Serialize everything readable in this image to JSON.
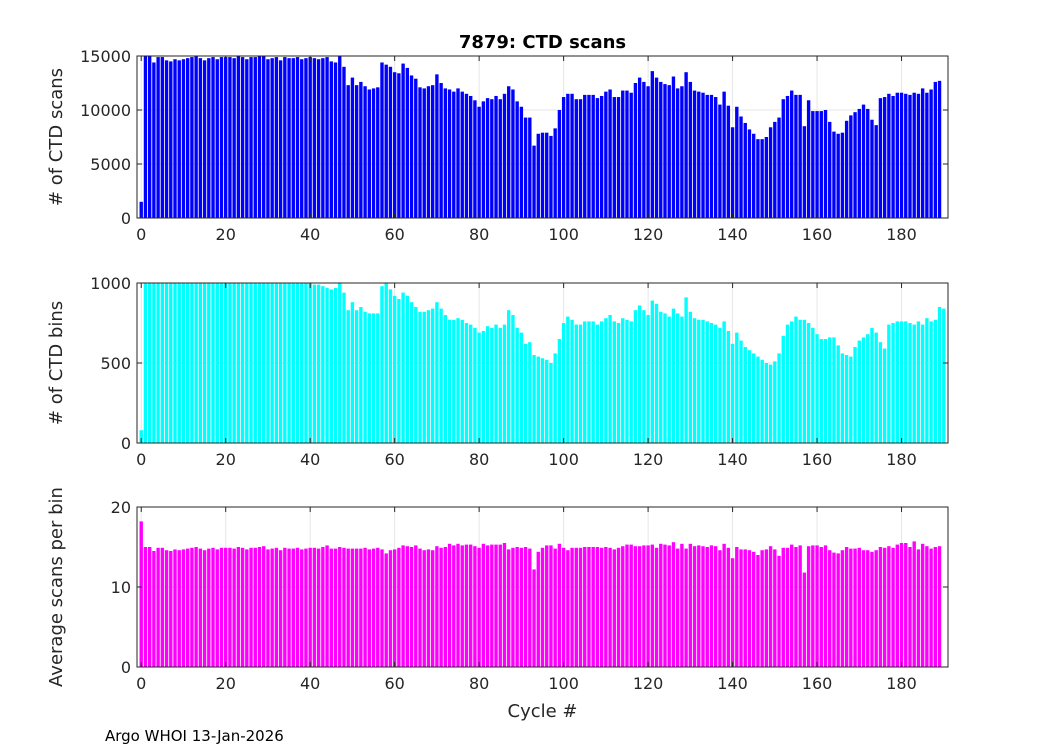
{
  "chart_data": [
    {
      "type": "bar",
      "title": "7879: CTD scans",
      "xlabel": "",
      "ylabel": "# of CTD scans",
      "xlim": [
        -1,
        191
      ],
      "ylim": [
        0,
        15000
      ],
      "xticks": [
        0,
        20,
        40,
        60,
        80,
        100,
        120,
        140,
        160,
        180
      ],
      "yticks": [
        0,
        5000,
        10000,
        15000
      ],
      "grid": true,
      "color": "#0000ff",
      "values": [
        1500,
        15000,
        15000,
        14400,
        14900,
        14900,
        14600,
        14500,
        14700,
        14600,
        14700,
        14800,
        14900,
        15000,
        14800,
        14600,
        14800,
        14900,
        14700,
        14900,
        14900,
        14900,
        14800,
        15000,
        14900,
        14700,
        14900,
        14900,
        15000,
        15100,
        14700,
        14800,
        14900,
        14600,
        14900,
        14800,
        14800,
        14900,
        14700,
        14800,
        14900,
        14800,
        14700,
        14800,
        14900,
        14500,
        14400,
        15000,
        14000,
        12300,
        13000,
        12300,
        12600,
        12200,
        11900,
        12000,
        12100,
        14400,
        14200,
        14000,
        13500,
        13400,
        14300,
        13900,
        13200,
        12900,
        12100,
        12000,
        12200,
        12300,
        13300,
        12500,
        12000,
        11900,
        11700,
        12000,
        11700,
        11500,
        11300,
        10900,
        10300,
        10800,
        11100,
        11000,
        11300,
        11000,
        11500,
        12200,
        11900,
        10800,
        10300,
        9300,
        9300,
        6700,
        7800,
        7900,
        7900,
        7600,
        8300,
        10000,
        11200,
        11500,
        11500,
        11000,
        11000,
        11400,
        11400,
        11400,
        11100,
        11300,
        11700,
        11900,
        11200,
        11200,
        11800,
        11800,
        11600,
        12500,
        13000,
        12600,
        12200,
        13600,
        13000,
        12600,
        12400,
        12300,
        13100,
        12000,
        12200,
        13500,
        12600,
        11800,
        11700,
        11600,
        11400,
        11400,
        11200,
        10500,
        11700,
        10400,
        8400,
        10300,
        9400,
        8800,
        8200,
        7800,
        7300,
        7300,
        7500,
        8400,
        8900,
        9300,
        11000,
        11300,
        11800,
        11400,
        11400,
        8500,
        10900,
        9900,
        9900,
        9900,
        10000,
        8900,
        8000,
        7800,
        7900,
        9000,
        9500,
        9800,
        10100,
        10500,
        10100,
        9100,
        8600,
        11100,
        11200,
        11500,
        11300,
        11600,
        11600,
        11500,
        11400,
        11600,
        11500,
        12000,
        11600,
        11900,
        12600,
        12700
      ]
    },
    {
      "type": "bar",
      "title": "",
      "xlabel": "",
      "ylabel": "# of CTD bins",
      "xlim": [
        -1,
        191
      ],
      "ylim": [
        0,
        1000
      ],
      "xticks": [
        0,
        20,
        40,
        60,
        80,
        100,
        120,
        140,
        160,
        180
      ],
      "yticks": [
        0,
        500,
        1000
      ],
      "grid": true,
      "color": "#00ffff",
      "values": [
        80,
        1000,
        1000,
        1000,
        1000,
        1000,
        1000,
        1000,
        1000,
        1000,
        1000,
        1000,
        1000,
        1000,
        1000,
        1000,
        1000,
        1000,
        1000,
        1000,
        1000,
        1000,
        1000,
        1000,
        1000,
        1000,
        1000,
        1000,
        1000,
        1000,
        1000,
        1000,
        1000,
        1000,
        1000,
        1000,
        1000,
        1000,
        1000,
        1000,
        1000,
        990,
        990,
        980,
        970,
        960,
        970,
        1000,
        940,
        830,
        880,
        830,
        850,
        820,
        810,
        810,
        810,
        980,
        1000,
        960,
        920,
        900,
        940,
        920,
        880,
        850,
        820,
        820,
        830,
        840,
        880,
        840,
        800,
        770,
        770,
        780,
        770,
        750,
        740,
        720,
        690,
        700,
        730,
        720,
        740,
        720,
        740,
        830,
        800,
        720,
        690,
        620,
        630,
        550,
        540,
        530,
        520,
        500,
        560,
        650,
        750,
        790,
        770,
        740,
        740,
        760,
        760,
        760,
        740,
        760,
        780,
        800,
        760,
        750,
        780,
        770,
        760,
        830,
        860,
        830,
        800,
        890,
        870,
        820,
        810,
        790,
        840,
        810,
        790,
        910,
        820,
        780,
        770,
        770,
        760,
        750,
        740,
        720,
        760,
        700,
        620,
        690,
        640,
        600,
        580,
        560,
        540,
        520,
        500,
        490,
        510,
        560,
        670,
        740,
        760,
        790,
        770,
        770,
        750,
        720,
        680,
        650,
        650,
        660,
        660,
        610,
        560,
        550,
        540,
        600,
        640,
        660,
        680,
        720,
        690,
        630,
        590,
        740,
        750,
        760,
        760,
        760,
        750,
        740,
        760,
        740,
        780,
        760,
        770,
        850,
        840
      ]
    },
    {
      "type": "bar",
      "title": "",
      "xlabel": "Cycle #",
      "ylabel": "Average scans per bin",
      "xlim": [
        -1,
        191
      ],
      "ylim": [
        0,
        20
      ],
      "xticks": [
        0,
        20,
        40,
        60,
        80,
        100,
        120,
        140,
        160,
        180
      ],
      "yticks": [
        0,
        10,
        20
      ],
      "grid": true,
      "color": "#ff00ff",
      "values": [
        18.2,
        15.0,
        15.0,
        14.5,
        14.9,
        14.9,
        14.6,
        14.5,
        14.7,
        14.6,
        14.7,
        14.8,
        14.9,
        15.0,
        14.8,
        14.6,
        14.8,
        14.9,
        14.7,
        14.9,
        14.9,
        14.9,
        14.8,
        15.0,
        14.9,
        14.7,
        14.9,
        14.9,
        15.0,
        15.1,
        14.7,
        14.8,
        14.9,
        14.6,
        14.9,
        14.8,
        14.8,
        14.9,
        14.7,
        14.8,
        14.9,
        14.9,
        14.8,
        15.0,
        15.2,
        14.8,
        14.8,
        15.0,
        14.9,
        14.8,
        14.8,
        14.8,
        14.8,
        14.9,
        14.7,
        14.8,
        14.9,
        14.7,
        14.2,
        14.6,
        14.7,
        14.9,
        15.2,
        15.1,
        15.0,
        15.2,
        14.8,
        14.6,
        14.7,
        14.6,
        15.1,
        14.9,
        15.0,
        15.4,
        15.2,
        15.4,
        15.2,
        15.3,
        15.3,
        15.1,
        14.9,
        15.4,
        15.2,
        15.3,
        15.3,
        15.3,
        15.5,
        14.7,
        14.9,
        15.0,
        14.9,
        15.0,
        14.8,
        12.2,
        14.4,
        14.9,
        15.2,
        15.2,
        14.8,
        15.4,
        14.9,
        14.6,
        14.9,
        14.9,
        14.9,
        15.0,
        15.0,
        15.0,
        15.0,
        14.9,
        15.0,
        14.9,
        14.7,
        14.9,
        15.1,
        15.3,
        15.3,
        15.1,
        15.1,
        15.2,
        15.2,
        15.3,
        14.9,
        15.4,
        15.3,
        15.2,
        15.6,
        14.8,
        15.4,
        14.8,
        15.4,
        15.1,
        15.2,
        15.1,
        15.0,
        15.2,
        15.1,
        14.6,
        15.4,
        14.9,
        13.6,
        15.0,
        14.7,
        14.7,
        14.6,
        14.4,
        14.0,
        14.6,
        14.7,
        15.1,
        14.7,
        13.9,
        14.9,
        14.9,
        15.3,
        15.0,
        15.2,
        11.8,
        15.1,
        15.2,
        15.2,
        15.0,
        15.2,
        14.6,
        14.3,
        14.2,
        14.6,
        15.0,
        14.8,
        14.8,
        14.9,
        14.6,
        14.6,
        14.4,
        14.6,
        15.0,
        14.9,
        15.1,
        14.9,
        15.3,
        15.5,
        15.5,
        15.0,
        15.7,
        14.7,
        15.4,
        15.1,
        14.8,
        15.0,
        15.1
      ]
    }
  ],
  "footer": "Argo WHOI 13-Jan-2026"
}
